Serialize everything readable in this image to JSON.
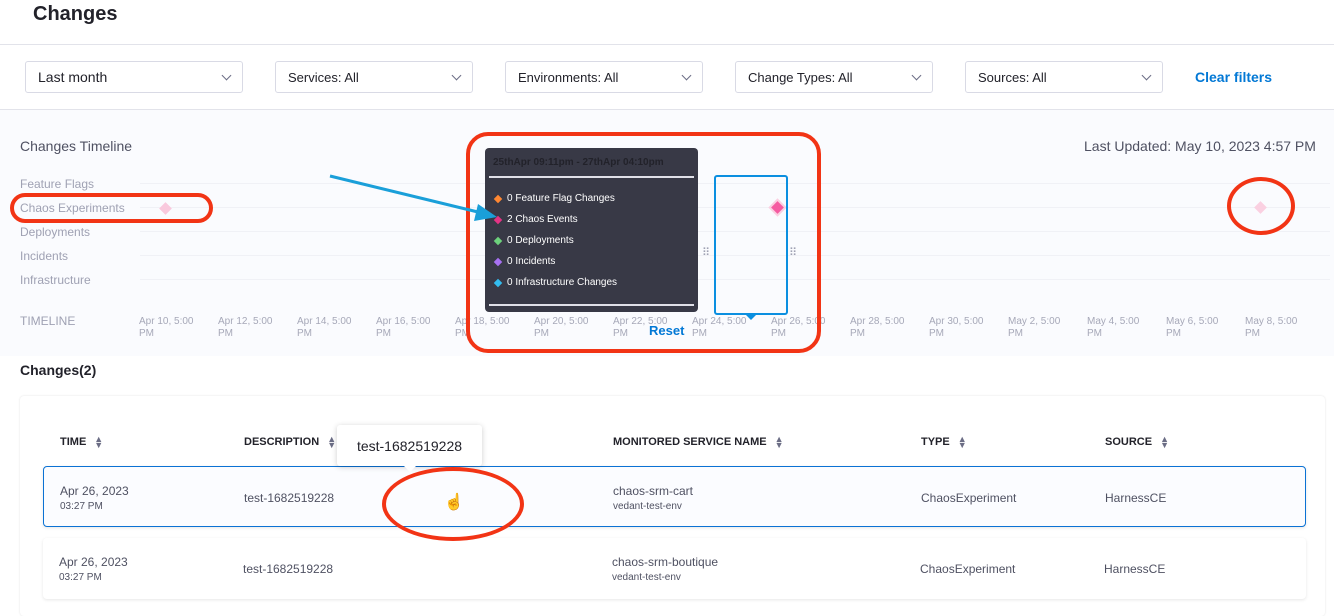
{
  "page": {
    "title": "Changes"
  },
  "filters": {
    "time": "Last month",
    "services": "Services: All",
    "environments": "Environments: All",
    "change_types": "Change Types: All",
    "sources": "Sources: All",
    "clear": "Clear filters"
  },
  "timeline": {
    "title": "Changes Timeline",
    "last_updated": "Last Updated: May 10, 2023 4:57 PM",
    "rows": [
      "Feature Flags",
      "Chaos Experiments",
      "Deployments",
      "Incidents",
      "Infrastructure"
    ],
    "axis_label": "TIMELINE",
    "ticks": [
      [
        "Apr 10, 5:00",
        "PM"
      ],
      [
        "Apr 12, 5:00",
        "PM"
      ],
      [
        "Apr 14, 5:00",
        "PM"
      ],
      [
        "Apr 16, 5:00",
        "PM"
      ],
      [
        "Apr 18, 5:00",
        "PM"
      ],
      [
        "Apr 20, 5:00",
        "PM"
      ],
      [
        "Apr 22, 5:00",
        "PM"
      ],
      [
        "Apr 24, 5:00",
        "PM"
      ],
      [
        "Apr 26, 5:00",
        "PM"
      ],
      [
        "Apr 28, 5:00",
        "PM"
      ],
      [
        "Apr 30, 5:00",
        "PM"
      ],
      [
        "May 2, 5:00",
        "PM"
      ],
      [
        "May 4, 5:00",
        "PM"
      ],
      [
        "May 6, 5:00",
        "PM"
      ],
      [
        "May 8, 5:00",
        "PM"
      ]
    ],
    "tooltip": {
      "range": "25thApr 09:11pm - 27thApr 04:10pm",
      "items": [
        {
          "label": "0 Feature Flag Changes",
          "color": "#ff8732"
        },
        {
          "label": "2 Chaos Events",
          "color": "#e43385"
        },
        {
          "label": "0 Deployments",
          "color": "#6dd17c"
        },
        {
          "label": "0 Incidents",
          "color": "#a771f2"
        },
        {
          "label": "0 Infrastructure Changes",
          "color": "#33bcef"
        }
      ]
    },
    "reset": "Reset",
    "marker_color": "#f55ba1"
  },
  "changes": {
    "heading": "Changes(2)",
    "columns": [
      "TIME",
      "DESCRIPTION",
      "MONITORED SERVICE NAME",
      "TYPE",
      "SOURCE"
    ],
    "hover_tooltip": "test-1682519228",
    "rows": [
      {
        "date": "Apr 26, 2023",
        "time": "03:27 PM",
        "description": "test-1682519228",
        "service": "chaos-srm-cart",
        "env": "vedant-test-env",
        "type": "ChaosExperiment",
        "source": "HarnessCE"
      },
      {
        "date": "Apr 26, 2023",
        "time": "03:27 PM",
        "description": "test-1682519228",
        "service": "chaos-srm-boutique",
        "env": "vedant-test-env",
        "type": "ChaosExperiment",
        "source": "HarnessCE"
      }
    ]
  },
  "annotation_color": "#f23415",
  "arrow_color": "#1a9fd9"
}
